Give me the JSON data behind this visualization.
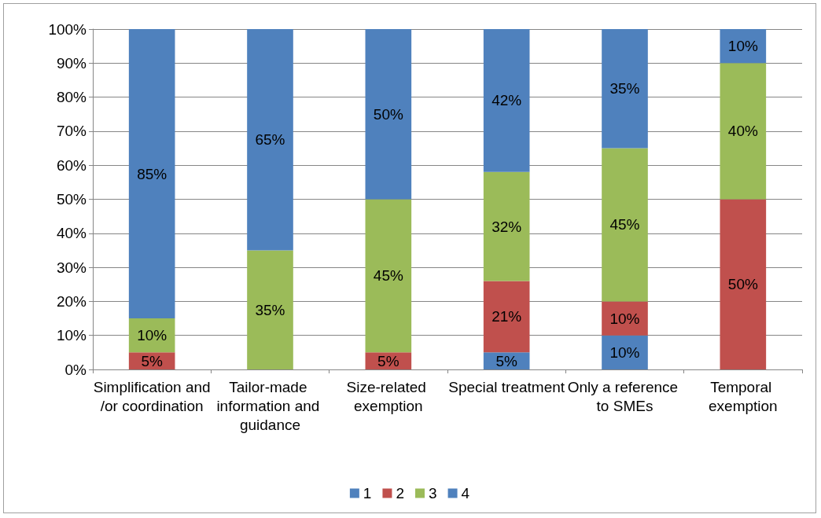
{
  "chart_data": {
    "type": "bar",
    "stacked": true,
    "categories": [
      "Simplification and/or coordination",
      "Tailor-made information and guidance",
      "Size-related exemption",
      "Special treatment",
      "Only a reference to SMEs",
      "Temporal exemption"
    ],
    "series": [
      {
        "name": "1",
        "color": "#4f81bd",
        "values": [
          0,
          0,
          0,
          5,
          10,
          0
        ],
        "value_labels": [
          null,
          null,
          null,
          "5%",
          "10%",
          null
        ]
      },
      {
        "name": "2",
        "color": "#c0504d",
        "values": [
          5,
          0,
          5,
          21,
          10,
          50
        ],
        "value_labels": [
          "5%",
          null,
          "5%",
          "21%",
          "10%",
          "50%"
        ]
      },
      {
        "name": "3",
        "color": "#9bbb59",
        "values": [
          10,
          35,
          45,
          32,
          45,
          40
        ],
        "value_labels": [
          "10%",
          "35%",
          "45%",
          "32%",
          "45%",
          "40%"
        ]
      },
      {
        "name": "4",
        "color": "#4f81bd",
        "values": [
          85,
          65,
          50,
          42,
          35,
          10
        ],
        "value_labels": [
          "85%",
          "65%",
          "50%",
          "42%",
          "35%",
          "10%"
        ]
      }
    ],
    "ylim": [
      0,
      100
    ],
    "yticks": [
      {
        "value": 0,
        "label": "0%"
      },
      {
        "value": 10,
        "label": "10%"
      },
      {
        "value": 20,
        "label": "20%"
      },
      {
        "value": 30,
        "label": "30%"
      },
      {
        "value": 40,
        "label": "40%"
      },
      {
        "value": 50,
        "label": "50%"
      },
      {
        "value": 60,
        "label": "60%"
      },
      {
        "value": 70,
        "label": "70%"
      },
      {
        "value": 80,
        "label": "80%"
      },
      {
        "value": 90,
        "label": "90%"
      },
      {
        "value": 100,
        "label": "100%"
      }
    ],
    "grid": "y",
    "legend": "bottom"
  }
}
